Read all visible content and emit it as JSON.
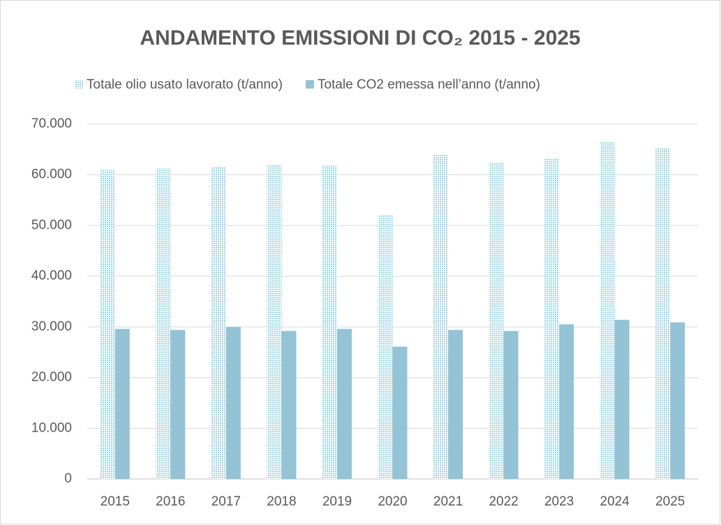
{
  "chart_data": {
    "type": "bar",
    "title": "ANDAMENTO EMISSIONI DI CO₂ 2015 - 2025",
    "categories": [
      "2015",
      "2016",
      "2017",
      "2018",
      "2019",
      "2020",
      "2021",
      "2022",
      "2023",
      "2024",
      "2025"
    ],
    "series": [
      {
        "name": "Totale olio usato lavorato (t/anno)",
        "color": "#9fd3e0",
        "pattern": "dotted",
        "values": [
          61000,
          61300,
          61500,
          61900,
          61800,
          52000,
          64100,
          62400,
          63300,
          66600,
          65200
        ]
      },
      {
        "name": "Totale CO2 emessa nell’anno (t/anno)",
        "color": "#93c3d4",
        "values": [
          29600,
          29400,
          30000,
          29200,
          29600,
          26100,
          29400,
          29200,
          30500,
          31400,
          30900
        ]
      }
    ],
    "ylim": [
      0,
      70000
    ],
    "yticks": [
      0,
      {
        "value": 10000,
        "label": "10.000"
      },
      {
        "value": 20000,
        "label": "20.000"
      },
      {
        "value": 30000,
        "label": "30.000"
      },
      {
        "value": 40000,
        "label": "40.000"
      },
      {
        "value": 50000,
        "label": "50.000"
      },
      {
        "value": 60000,
        "label": "60.000"
      },
      {
        "value": 70000,
        "label": "70.000"
      }
    ],
    "grid": true,
    "legend": "top"
  }
}
